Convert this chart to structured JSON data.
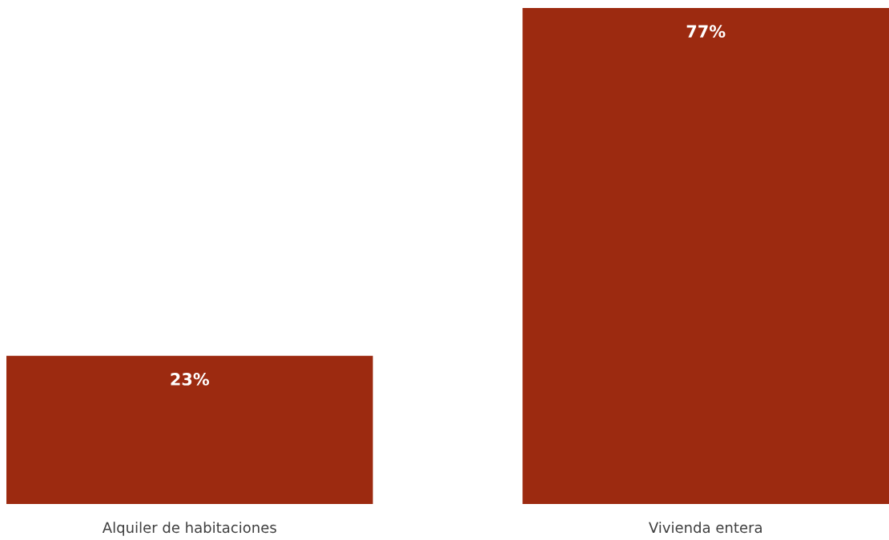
{
  "chart_data": {
    "type": "bar",
    "categories": [
      "Alquiler de habitaciones",
      "Vivienda entera"
    ],
    "values": [
      23,
      77
    ],
    "value_labels": [
      "23%",
      "77%"
    ],
    "color": "#9c2a10"
  }
}
